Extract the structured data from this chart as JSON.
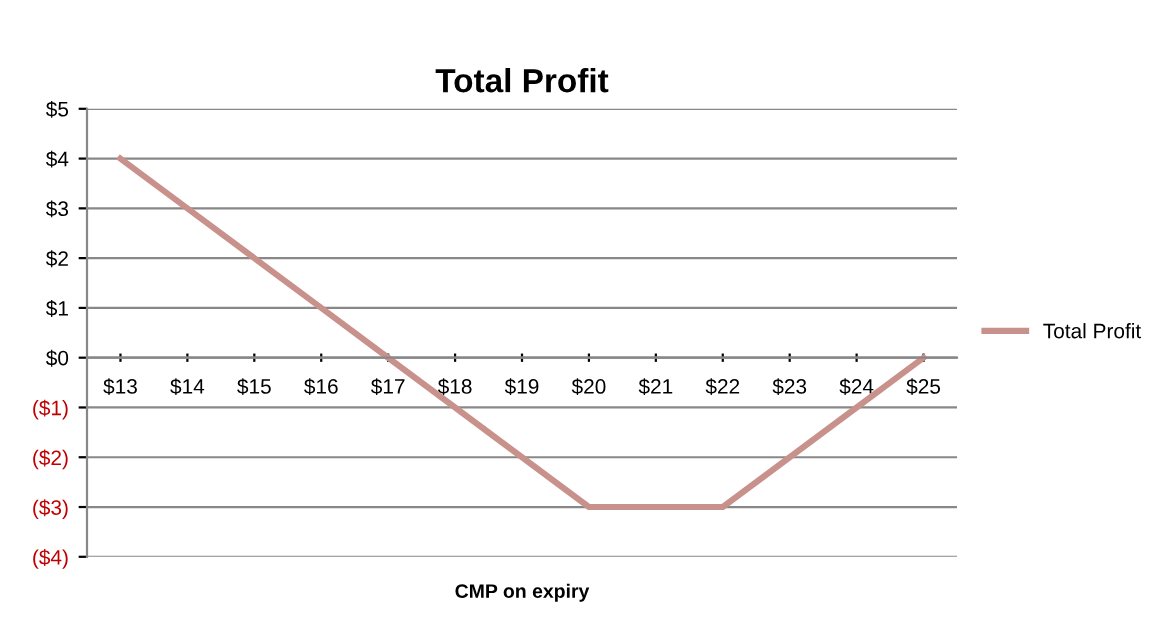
{
  "chart_data": {
    "type": "line",
    "title": "Total Profit",
    "xlabel": "CMP on expiry",
    "categories": [
      "$13",
      "$14",
      "$15",
      "$16",
      "$17",
      "$18",
      "$19",
      "$20",
      "$21",
      "$22",
      "$23",
      "$24",
      "$25"
    ],
    "series": [
      {
        "name": "Total Profit",
        "color": "#c8918c",
        "values": [
          4,
          3,
          2,
          1,
          0,
          -1,
          -2,
          -3,
          -3,
          -3,
          -2,
          -1,
          0
        ]
      }
    ],
    "ylim": [
      -4,
      5
    ],
    "yticks": [
      {
        "value": -4,
        "label": "($4)"
      },
      {
        "value": -3,
        "label": "($3)"
      },
      {
        "value": -2,
        "label": "($2)"
      },
      {
        "value": -1,
        "label": "($1)"
      },
      {
        "value": 0,
        "label": "$0"
      },
      {
        "value": 1,
        "label": "$1"
      },
      {
        "value": 2,
        "label": "$2"
      },
      {
        "value": 3,
        "label": "$3"
      },
      {
        "value": 4,
        "label": "$4"
      },
      {
        "value": 5,
        "label": "$5"
      }
    ],
    "grid": "y",
    "legend": "right",
    "marker": "none",
    "line_style": "solid"
  }
}
